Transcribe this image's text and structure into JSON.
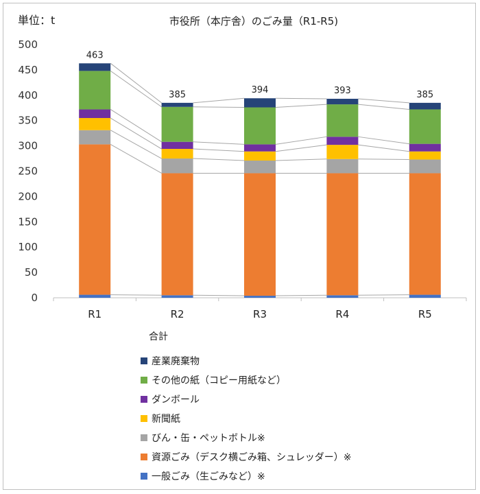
{
  "chart_data": {
    "type": "bar",
    "stacked": true,
    "title": "市役所（本庁舎）のごみ量（R1-R5)",
    "unit_label": "単位：t",
    "categories": [
      "R1",
      "R2",
      "R3",
      "R4",
      "R5"
    ],
    "ylim": [
      0,
      500
    ],
    "yticks": [
      0,
      50,
      100,
      150,
      200,
      250,
      300,
      350,
      400,
      450,
      500
    ],
    "totals_label": "合計",
    "totals": [
      463,
      385,
      394,
      393,
      385
    ],
    "series": [
      {
        "name": "一般ごみ（生ごみなど）※",
        "color": "#4472c4",
        "values": [
          6,
          5,
          4,
          5,
          6
        ]
      },
      {
        "name": "資源ごみ（デスク横ごみ箱、シュレッダー）※",
        "color": "#ed7d31",
        "values": [
          297,
          241,
          242,
          241,
          240
        ]
      },
      {
        "name": "びん・缶・ペットボトル※",
        "color": "#a5a5a5",
        "values": [
          28,
          29,
          25,
          28,
          27
        ]
      },
      {
        "name": "新聞紙",
        "color": "#ffc000",
        "values": [
          24,
          19,
          18,
          28,
          16
        ]
      },
      {
        "name": "ダンボール",
        "color": "#7030a0",
        "values": [
          17,
          14,
          14,
          16,
          15
        ]
      },
      {
        "name": "その他の紙（コピー用紙など）",
        "color": "#70ad47",
        "values": [
          76,
          69,
          73,
          64,
          68
        ]
      },
      {
        "name": "産業廃棄物",
        "color": "#264478",
        "values": [
          15,
          8,
          18,
          11,
          13
        ]
      }
    ],
    "legend_position": "bottom"
  }
}
